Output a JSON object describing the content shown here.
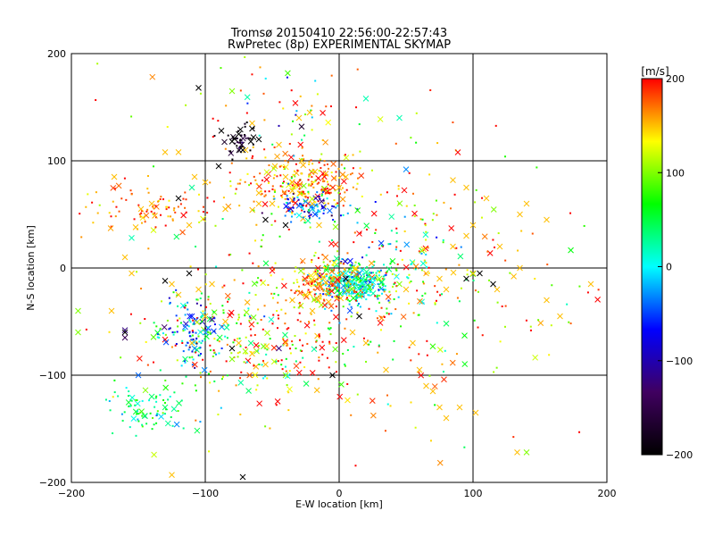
{
  "chart_data": {
    "type": "scatter",
    "title": "Tromsø 20150410 22:56:00-22:57:43",
    "subtitle": "RwPretec (8p) EXPERIMENTAL SKYMAP",
    "xlabel": "E-W location [km]",
    "ylabel": "N-S location [km]",
    "xlim": [
      -200,
      200
    ],
    "ylim": [
      -200,
      200
    ],
    "xticks": [
      -200,
      -100,
      0,
      100,
      200
    ],
    "yticks": [
      -200,
      -100,
      0,
      100,
      200
    ],
    "grid": true,
    "colorbar": {
      "label": "[m/s]",
      "min": -200,
      "max": 200,
      "ticks": [
        200,
        100,
        0,
        -100,
        -200
      ],
      "colormap": [
        "#000000",
        "#400060",
        "#0000ff",
        "#00ffff",
        "#00ff00",
        "#ffff00",
        "#ff0000"
      ]
    },
    "marker_types": [
      "point",
      "cross"
    ],
    "series": [
      {
        "marker": "cross",
        "points": [
          [
            -168,
            85,
            150
          ],
          [
            -152,
            38,
            150
          ],
          [
            -148,
            55,
            150
          ],
          [
            -140,
            60,
            150
          ],
          [
            -112,
            40,
            150
          ],
          [
            -108,
            85,
            150
          ],
          [
            -110,
            75,
            150
          ],
          [
            -85,
            55,
            150
          ],
          [
            -70,
            110,
            150
          ],
          [
            -48,
            95,
            150
          ],
          [
            -40,
            85,
            150
          ],
          [
            -35,
            80,
            150
          ],
          [
            -28,
            100,
            150
          ],
          [
            -18,
            90,
            150
          ],
          [
            -10,
            88,
            150
          ],
          [
            0,
            75,
            150
          ],
          [
            5,
            85,
            150
          ],
          [
            -20,
            60,
            150
          ],
          [
            -50,
            60,
            150
          ],
          [
            -60,
            70,
            150
          ],
          [
            -30,
            140,
            150
          ],
          [
            -45,
            115,
            150
          ],
          [
            -65,
            135,
            150
          ],
          [
            -22,
            145,
            150
          ],
          [
            -120,
            108,
            150
          ],
          [
            -130,
            108,
            150
          ],
          [
            -100,
            80,
            150
          ],
          [
            85,
            82,
            150
          ],
          [
            95,
            75,
            150
          ],
          [
            110,
            65,
            150
          ],
          [
            100,
            40,
            150
          ],
          [
            140,
            60,
            150
          ],
          [
            135,
            50,
            150
          ],
          [
            120,
            20,
            150
          ],
          [
            95,
            30,
            150
          ],
          [
            85,
            20,
            150
          ],
          [
            -125,
            -15,
            150
          ],
          [
            -120,
            -25,
            150
          ],
          [
            -105,
            -20,
            150
          ],
          [
            -95,
            -15,
            150
          ],
          [
            -100,
            -45,
            150
          ],
          [
            -85,
            -50,
            150
          ],
          [
            -110,
            -70,
            150
          ],
          [
            -75,
            -70,
            150
          ],
          [
            -65,
            -80,
            150
          ],
          [
            -55,
            -90,
            150
          ],
          [
            -40,
            -70,
            150
          ],
          [
            -35,
            -30,
            150
          ],
          [
            -25,
            -25,
            150
          ],
          [
            -15,
            -15,
            150
          ],
          [
            -5,
            -10,
            150
          ],
          [
            -20,
            -40,
            150
          ],
          [
            10,
            -60,
            150
          ],
          [
            20,
            -70,
            150
          ],
          [
            35,
            -95,
            150
          ],
          [
            55,
            -70,
            150
          ],
          [
            60,
            -95,
            150
          ],
          [
            65,
            -110,
            150
          ],
          [
            70,
            -115,
            150
          ],
          [
            75,
            -130,
            150
          ],
          [
            80,
            -140,
            150
          ],
          [
            90,
            -130,
            150
          ],
          [
            102,
            -135,
            150
          ],
          [
            50,
            -20,
            150
          ],
          [
            65,
            -5,
            150
          ],
          [
            75,
            -10,
            150
          ],
          [
            80,
            -20,
            150
          ],
          [
            100,
            -5,
            150
          ],
          [
            118,
            -20,
            150
          ],
          [
            135,
            0,
            150
          ],
          [
            155,
            45,
            150
          ],
          [
            165,
            -45,
            150
          ],
          [
            188,
            -15,
            150
          ],
          [
            155,
            -30,
            150
          ],
          [
            133,
            -172,
            150
          ],
          [
            -125,
            -193,
            150
          ],
          [
            -35,
            72,
            150
          ],
          [
            -15,
            40,
            150
          ],
          [
            -60,
            60,
            150
          ],
          [
            -160,
            10,
            150
          ],
          [
            -155,
            -5,
            150
          ],
          [
            -170,
            -40,
            150
          ],
          [
            -115,
            -85,
            40
          ],
          [
            -130,
            -130,
            40
          ],
          [
            -140,
            -120,
            40
          ],
          [
            -145,
            -138,
            40
          ],
          [
            -195,
            -60,
            100
          ],
          [
            -195,
            -40,
            100
          ],
          [
            -80,
            165,
            100
          ],
          [
            -40,
            -100,
            100
          ],
          [
            30,
            -10,
            100
          ],
          [
            45,
            -15,
            100
          ],
          [
            140,
            -172,
            100
          ],
          [
            -80,
            -85,
            100
          ],
          [
            -155,
            28,
            20
          ],
          [
            -110,
            75,
            20
          ],
          [
            45,
            140,
            20
          ],
          [
            20,
            158,
            20
          ],
          [
            -20,
            55,
            -20
          ],
          [
            -25,
            62,
            -30
          ],
          [
            -18,
            50,
            -50
          ],
          [
            -30,
            58,
            -40
          ],
          [
            15,
            -5,
            -30
          ],
          [
            10,
            -15,
            0
          ],
          [
            20,
            -20,
            0
          ],
          [
            5,
            -5,
            0
          ],
          [
            25,
            -10,
            0
          ],
          [
            50,
            92,
            -30
          ],
          [
            -108,
            -75,
            -30
          ],
          [
            -115,
            -55,
            -40
          ],
          [
            -110,
            -45,
            -60
          ],
          [
            -150,
            -100,
            -40
          ],
          [
            -160,
            -58,
            -120
          ],
          [
            -160,
            -65,
            -140
          ],
          [
            -95,
            -48,
            -120
          ],
          [
            -45,
            -75,
            -120
          ],
          [
            -60,
            120,
            -200
          ],
          [
            -64,
            122,
            -200
          ],
          [
            -66,
            118,
            -200
          ],
          [
            -80,
            118,
            -200
          ],
          [
            -65,
            130,
            -200
          ],
          [
            -75,
            125,
            -200
          ],
          [
            -72,
            110,
            -200
          ],
          [
            -88,
            128,
            -200
          ],
          [
            -105,
            168,
            -200
          ],
          [
            -90,
            95,
            -200
          ],
          [
            -55,
            45,
            -200
          ],
          [
            -120,
            65,
            -200
          ],
          [
            -160,
            -60,
            -200
          ],
          [
            -40,
            40,
            -200
          ],
          [
            -112,
            -5,
            -200
          ],
          [
            -80,
            -75,
            -200
          ],
          [
            -72,
            -195,
            -200
          ],
          [
            -5,
            -100,
            -200
          ],
          [
            15,
            -45,
            -200
          ],
          [
            5,
            -10,
            -200
          ],
          [
            95,
            -10,
            -200
          ],
          [
            105,
            -5,
            -200
          ],
          [
            115,
            -15,
            -200
          ],
          [
            -130,
            -12,
            -200
          ]
        ]
      }
    ],
    "scatter_clusters": [
      {
        "marker": "point",
        "center": [
          -30,
          80
        ],
        "spread": [
          22,
          15
        ],
        "count": 240,
        "v_mean": 165,
        "v_spread": 35
      },
      {
        "marker": "point",
        "center": [
          -20,
          57
        ],
        "spread": [
          12,
          6
        ],
        "count": 80,
        "v_mean": -45,
        "v_spread": 45
      },
      {
        "marker": "point",
        "center": [
          10,
          -15
        ],
        "spread": [
          12,
          9
        ],
        "count": 320,
        "v_mean": 10,
        "v_spread": 50
      },
      {
        "marker": "point",
        "center": [
          -15,
          -15
        ],
        "spread": [
          14,
          10
        ],
        "count": 140,
        "v_mean": 165,
        "v_spread": 30
      },
      {
        "marker": "point",
        "center": [
          -60,
          -65
        ],
        "spread": [
          38,
          28
        ],
        "count": 240,
        "v_mean": 140,
        "v_spread": 75
      },
      {
        "marker": "point",
        "center": [
          -110,
          -60
        ],
        "spread": [
          12,
          15
        ],
        "count": 110,
        "v_mean": -30,
        "v_spread": 60
      },
      {
        "marker": "point",
        "center": [
          -145,
          -130
        ],
        "spread": [
          15,
          10
        ],
        "count": 80,
        "v_mean": 40,
        "v_spread": 35
      },
      {
        "marker": "point",
        "center": [
          -145,
          55
        ],
        "spread": [
          28,
          12
        ],
        "count": 90,
        "v_mean": 175,
        "v_spread": 25
      },
      {
        "marker": "point",
        "center": [
          -75,
          118
        ],
        "spread": [
          6,
          6
        ],
        "count": 45,
        "v_mean": -180,
        "v_spread": 30
      },
      {
        "marker": "point",
        "center": [
          -25,
          -10
        ],
        "spread": [
          75,
          95
        ],
        "count": 260,
        "v_mean": 155,
        "v_spread": 60
      },
      {
        "marker": "point",
        "center": [
          80,
          -20
        ],
        "spread": [
          55,
          55
        ],
        "count": 140,
        "v_mean": 140,
        "v_spread": 70
      },
      {
        "marker": "point",
        "center": [
          -40,
          150
        ],
        "spread": [
          30,
          25
        ],
        "count": 40,
        "v_mean": 80,
        "v_spread": 140
      },
      {
        "marker": "point",
        "center": [
          45,
          10
        ],
        "spread": [
          22,
          28
        ],
        "count": 90,
        "v_mean": 80,
        "v_spread": 90
      }
    ]
  }
}
